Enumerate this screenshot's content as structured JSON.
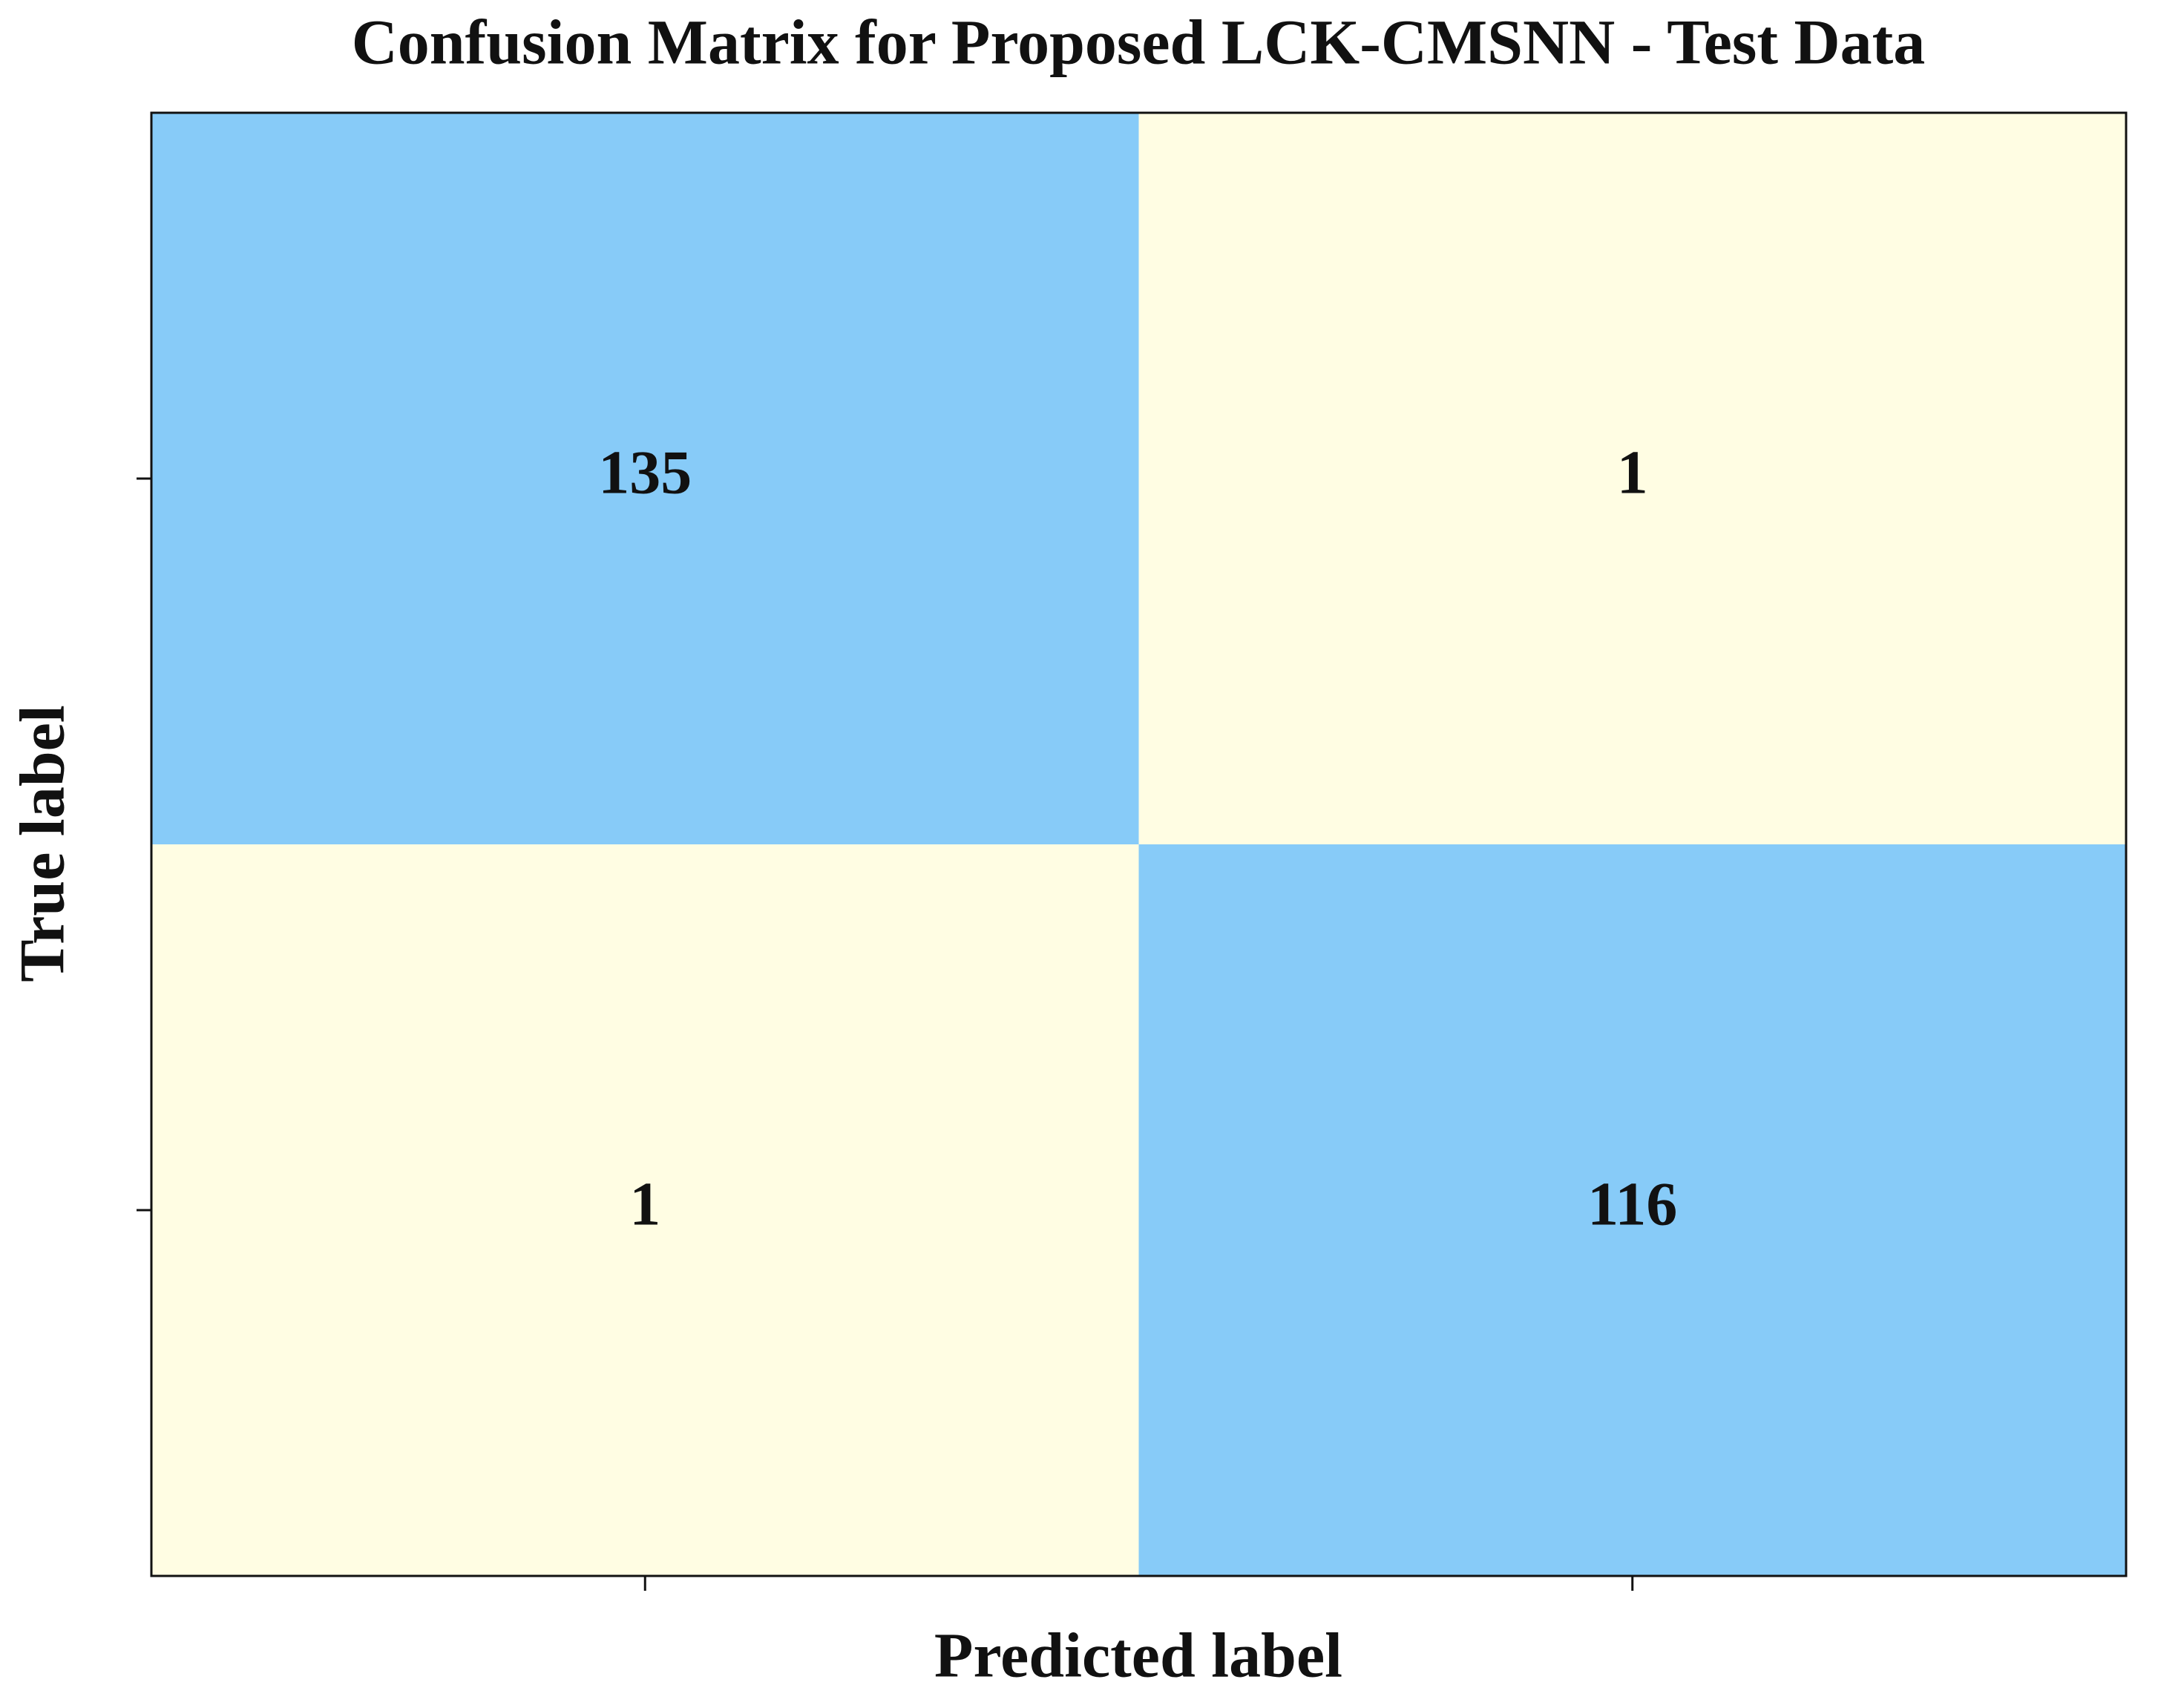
{
  "chart_data": {
    "type": "heatmap",
    "title": "Confusion Matrix for Proposed LCK-CMSNN - Test Data",
    "xlabel": "Predicted label",
    "ylabel": "True label",
    "x_categories": [
      null,
      null
    ],
    "y_categories": [
      null,
      null
    ],
    "values": [
      [
        135,
        1
      ],
      [
        1,
        116
      ]
    ],
    "colors": [
      "#fffde3",
      "#87cbf8"
    ]
  }
}
